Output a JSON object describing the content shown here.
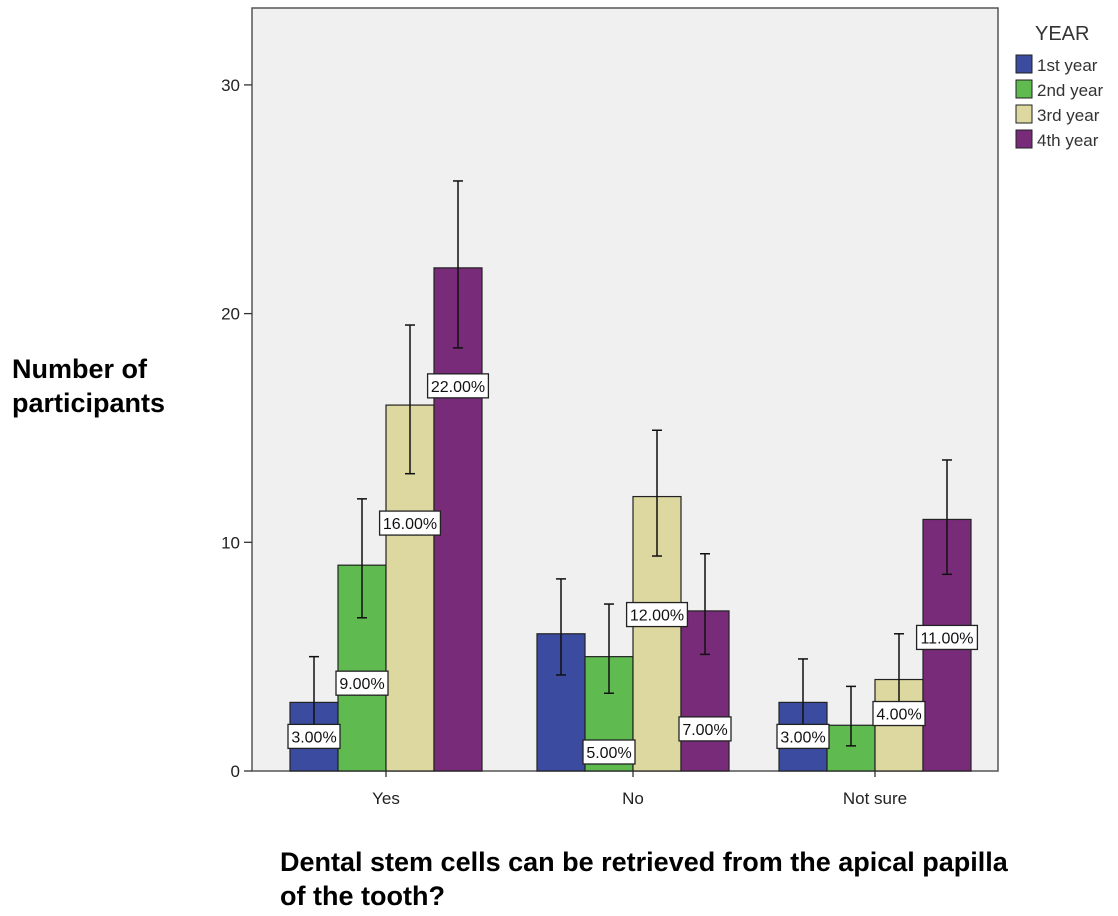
{
  "chart_data": {
    "type": "bar",
    "xlabel": "Dental stem cells can be retrieved from the apical papilla of the tooth?",
    "ylabel": "Number of participants",
    "ylim": [
      0,
      33
    ],
    "yticks": [
      0,
      10,
      20,
      30
    ],
    "categories": [
      "Yes",
      "No",
      "Not sure"
    ],
    "legend_title": "YEAR",
    "legend_position": "top-right, outside plot",
    "grid": false,
    "series": [
      {
        "name": "1st year",
        "color": "#3a4ba0",
        "values": [
          3,
          6,
          3
        ],
        "err_low": [
          1.2,
          4.2,
          1.2
        ],
        "err_high": [
          5.0,
          8.4,
          4.9
        ],
        "labels": [
          "3.00%",
          "",
          "3.00%"
        ]
      },
      {
        "name": "2nd year",
        "color": "#5fba4f",
        "values": [
          9,
          5,
          2
        ],
        "err_low": [
          6.7,
          3.4,
          1.1
        ],
        "err_high": [
          11.9,
          7.3,
          3.7
        ],
        "labels": [
          "9.00%",
          "5.00%",
          ""
        ]
      },
      {
        "name": "3rd year",
        "color": "#dcd8a0",
        "values": [
          16,
          12,
          4
        ],
        "err_low": [
          13.0,
          9.4,
          2.6
        ],
        "err_high": [
          19.5,
          14.9,
          6.0
        ],
        "labels": [
          "16.00%",
          "12.00%",
          "4.00%"
        ]
      },
      {
        "name": "4th year",
        "color": "#772b79",
        "values": [
          22,
          7,
          11
        ],
        "err_low": [
          18.5,
          5.1,
          8.6
        ],
        "err_high": [
          25.8,
          9.5,
          13.6
        ],
        "labels": [
          "22.00%",
          "7.00%",
          "11.00%"
        ]
      }
    ]
  }
}
